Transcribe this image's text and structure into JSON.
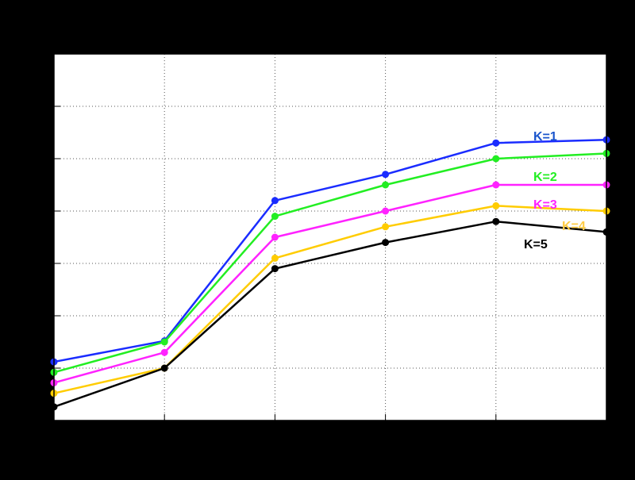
{
  "chart_data": {
    "type": "line",
    "title": "",
    "xlabel": "",
    "ylabel": "",
    "x": [
      1,
      2,
      3,
      4,
      5,
      6
    ],
    "xlim": [
      1,
      6
    ],
    "ylim": [
      0,
      7
    ],
    "grid": true,
    "legend": "none",
    "series": [
      {
        "name": "K=1",
        "color": "#1a2cff",
        "values": [
          1.12,
          1.52,
          4.2,
          4.7,
          5.3,
          5.36
        ]
      },
      {
        "name": "K=2",
        "color": "#22ee22",
        "values": [
          0.92,
          1.5,
          3.9,
          4.5,
          5.0,
          5.1
        ]
      },
      {
        "name": "K=3",
        "color": "#ff22ff",
        "values": [
          0.72,
          1.3,
          3.5,
          4.0,
          4.5,
          4.5
        ]
      },
      {
        "name": "K=4",
        "color": "#ffcc00",
        "values": [
          0.52,
          1.0,
          3.1,
          3.7,
          4.1,
          4.0
        ]
      },
      {
        "name": "K=5",
        "color": "#000000",
        "values": [
          0.26,
          1.0,
          2.9,
          3.4,
          3.8,
          3.6
        ]
      }
    ],
    "annotations": [
      {
        "text": "K=1",
        "color": "#1a55cc"
      },
      {
        "text": "K=2",
        "color": "#22ee22"
      },
      {
        "text": "K=3",
        "color": "#ff22ff"
      },
      {
        "text": "K=4",
        "color": "#ffcc44"
      },
      {
        "text": "K=5",
        "color": "#000000"
      }
    ]
  }
}
